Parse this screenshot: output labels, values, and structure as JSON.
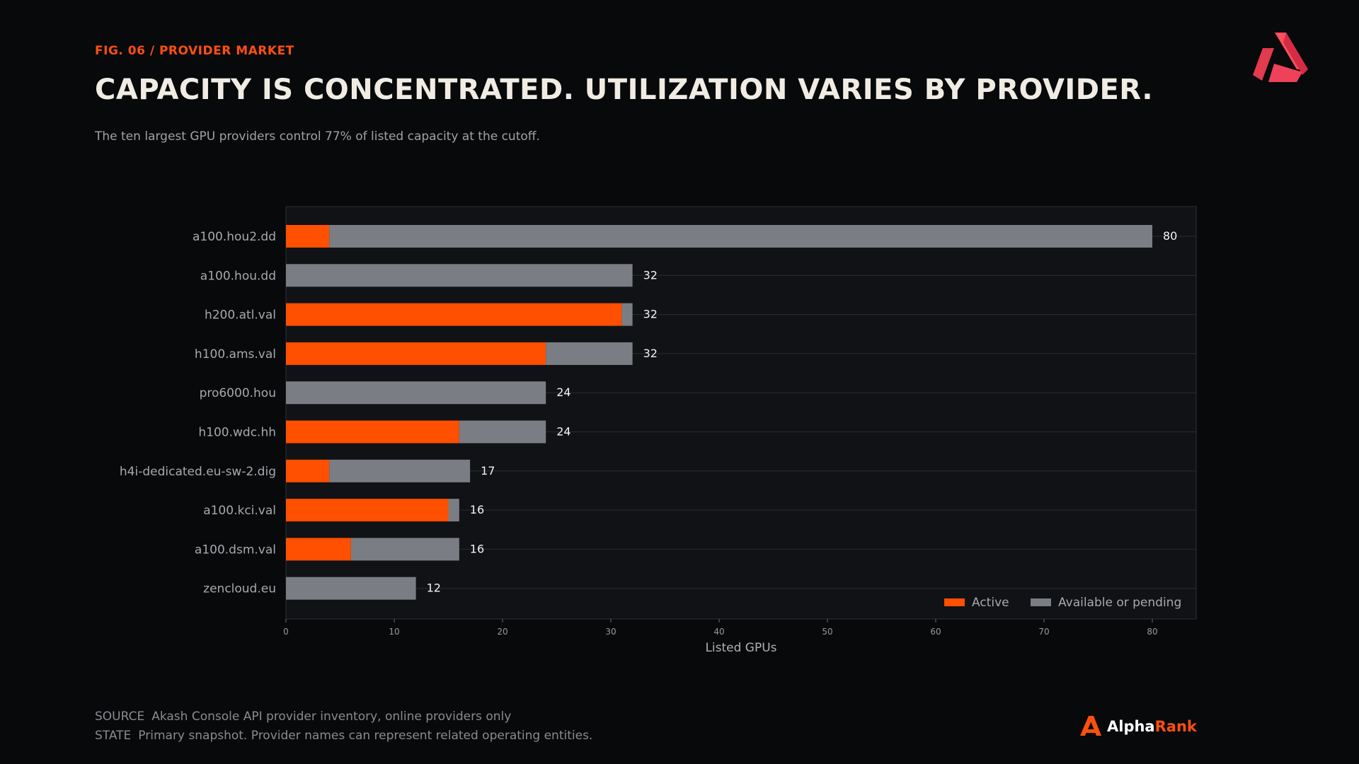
{
  "header": {
    "fig_label": "FIG. 06 / PROVIDER MARKET",
    "title": "CAPACITY IS CONCENTRATED. UTILIZATION VARIES BY PROVIDER.",
    "subtitle": "The ten largest GPU providers control 77% of listed capacity at the cutoff."
  },
  "footer": {
    "source_key": "SOURCE",
    "source_text": "Akash Console API provider inventory, online providers only",
    "state_key": "STATE",
    "state_text": "Primary snapshot. Provider names can represent related operating entities."
  },
  "brand": {
    "name_a": "Alpha",
    "name_b": "Rank"
  },
  "icons": {
    "top_right": "akash-logo-icon",
    "bottom_right": "alpharank-logo-icon"
  },
  "colors": {
    "active": "#ff4f00",
    "available": "#7a7e84",
    "accent": "#ff4f0f",
    "plot_bg": "#111215",
    "grid": "#2a2c30"
  },
  "chart_data": {
    "type": "bar",
    "orientation": "horizontal",
    "stacked": true,
    "categories": [
      "a100.hou2.dd",
      "a100.hou.dd",
      "h200.atl.val",
      "h100.ams.val",
      "pro6000.hou",
      "h100.wdc.hh",
      "h4i-dedicated.eu-sw-2.dig",
      "a100.kci.val",
      "a100.dsm.val",
      "zencloud.eu"
    ],
    "series": [
      {
        "name": "Active",
        "values": [
          4,
          0,
          31,
          24,
          0,
          16,
          4,
          15,
          6,
          0
        ]
      },
      {
        "name": "Available or pending",
        "values": [
          76,
          32,
          1,
          8,
          24,
          8,
          13,
          1,
          10,
          12
        ]
      }
    ],
    "totals": [
      80,
      32,
      32,
      32,
      24,
      24,
      17,
      16,
      16,
      12
    ],
    "xlabel": "Listed GPUs",
    "ylabel": "",
    "xlim": [
      0,
      84
    ],
    "xticks": [
      0,
      10,
      20,
      30,
      40,
      50,
      60,
      70,
      80
    ],
    "grid": "horizontal",
    "legend_position": "bottom-right"
  }
}
